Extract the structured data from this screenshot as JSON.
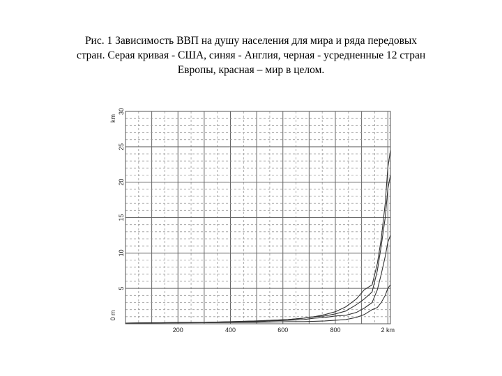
{
  "caption": {
    "line1": "Рис. 1 Зависимость ВВП на душу населения для мира и ряда передовых",
    "line2": "стран. Серая кривая - США, синяя - Англия,  черная - усредненные 12 стран",
    "line3": "Европы, красная – мир в целом."
  },
  "chart_data": {
    "type": "line",
    "title": "",
    "y_unit_label": "km",
    "y_zero_label": "0 m",
    "y_ticks": [
      "5",
      "10",
      "15",
      "20",
      "25",
      "30"
    ],
    "x_ticks": [
      "200",
      "400",
      "600",
      "800",
      "2 km"
    ],
    "x_ticks_values": [
      200,
      400,
      600,
      800,
      1000
    ],
    "xlim": [
      0,
      1010
    ],
    "ylim": [
      0,
      30
    ],
    "grid": true,
    "series": [
      {
        "color": "#333333",
        "x": [
          0,
          300,
          500,
          620,
          680,
          720,
          760,
          800,
          840,
          880,
          910,
          940,
          960,
          975,
          990,
          1000,
          1010
        ],
        "y": [
          0.1,
          0.2,
          0.4,
          0.6,
          0.8,
          1.0,
          1.3,
          1.7,
          2.4,
          3.5,
          4.8,
          5.5,
          8.5,
          12,
          17,
          22,
          24.5
        ]
      },
      {
        "color": "#333333",
        "x": [
          0,
          300,
          500,
          620,
          680,
          720,
          760,
          800,
          840,
          880,
          910,
          940,
          960,
          975,
          990,
          1000,
          1010
        ],
        "y": [
          0.1,
          0.2,
          0.4,
          0.6,
          0.8,
          1.0,
          1.1,
          1.4,
          1.8,
          2.7,
          3.5,
          4.5,
          7.5,
          11,
          15,
          19,
          21
        ]
      },
      {
        "color": "#333333",
        "x": [
          0,
          300,
          500,
          620,
          680,
          720,
          760,
          800,
          840,
          880,
          910,
          940,
          960,
          975,
          990,
          1000,
          1010
        ],
        "y": [
          0.1,
          0.2,
          0.3,
          0.5,
          0.6,
          0.8,
          0.9,
          1.1,
          1.2,
          1.6,
          2.2,
          3.0,
          4.8,
          7.0,
          9.5,
          11.5,
          12.5
        ]
      },
      {
        "color": "#333333",
        "x": [
          0,
          300,
          500,
          620,
          680,
          720,
          760,
          800,
          840,
          880,
          910,
          940,
          960,
          975,
          990,
          1000,
          1010
        ],
        "y": [
          0.1,
          0.15,
          0.2,
          0.3,
          0.3,
          0.35,
          0.4,
          0.5,
          0.6,
          0.9,
          1.3,
          2.0,
          2.3,
          3.0,
          4.0,
          5.0,
          5.5
        ]
      }
    ]
  }
}
